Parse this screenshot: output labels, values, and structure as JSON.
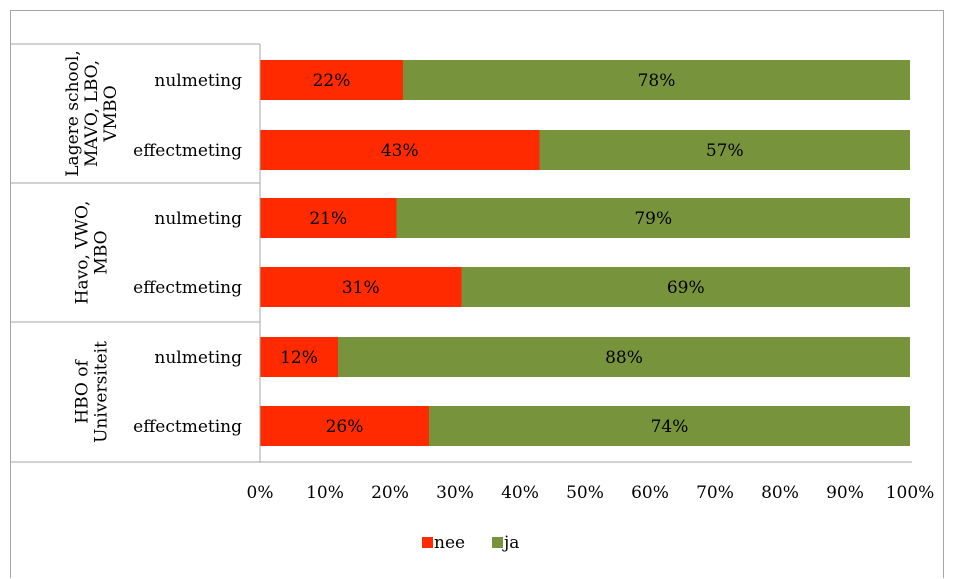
{
  "chart_data": {
    "type": "bar",
    "orientation": "horizontal",
    "stacked": "percent",
    "groups": [
      {
        "label": "Lagere school, MAVO, LBO, VMBO",
        "label_lines": [
          "Lagere school,",
          "MAVO, LBO,",
          "VMBO"
        ]
      },
      {
        "label": "Havo, VWO, MBO",
        "label_lines": [
          "Havo, VWO,",
          "MBO"
        ]
      },
      {
        "label": "HBO of Universiteit",
        "label_lines": [
          "HBO of",
          "Universiteit"
        ]
      }
    ],
    "categories": [
      {
        "group": 0,
        "label": "nulmeting"
      },
      {
        "group": 0,
        "label": "effectmeting"
      },
      {
        "group": 1,
        "label": "nulmeting"
      },
      {
        "group": 1,
        "label": "effectmeting"
      },
      {
        "group": 2,
        "label": "nulmeting"
      },
      {
        "group": 2,
        "label": "effectmeting"
      }
    ],
    "series": [
      {
        "name": "nee",
        "color": "#ff2a00",
        "values": [
          22,
          43,
          21,
          31,
          12,
          26
        ],
        "labels": [
          "22%",
          "43%",
          "21%",
          "31%",
          "12%",
          "26%"
        ]
      },
      {
        "name": "ja",
        "color": "#77933c",
        "values": [
          78,
          57,
          79,
          69,
          88,
          74
        ],
        "labels": [
          "78%",
          "57%",
          "79%",
          "69%",
          "88%",
          "74%"
        ]
      }
    ],
    "xlim": [
      0,
      100
    ],
    "x_ticks": [
      "0%",
      "10%",
      "20%",
      "30%",
      "40%",
      "50%",
      "60%",
      "70%",
      "80%",
      "90%",
      "100%"
    ],
    "grid": false,
    "legend_position": "bottom"
  }
}
